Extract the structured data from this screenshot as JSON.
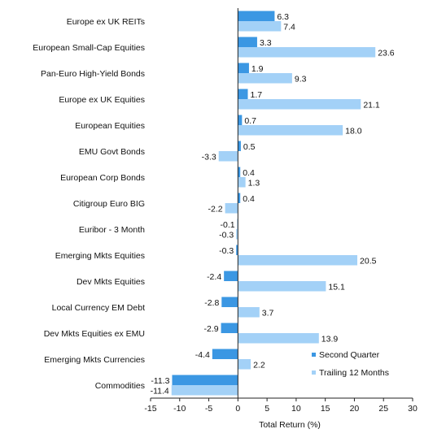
{
  "chart_data": {
    "type": "bar",
    "orientation": "horizontal",
    "categories": [
      "Europe ex UK REITs",
      "European Small-Cap Equities",
      "Pan-Euro High-Yield Bonds",
      "Europe ex UK Equities",
      "European Equities",
      "EMU Govt Bonds",
      "European Corp Bonds",
      "Citigroup Euro BIG",
      "Euribor - 3 Month",
      "Emerging Mkts Equities",
      "Dev Mkts Equities",
      "Local Currency EM Debt",
      "Dev Mkts Equities ex EMU",
      "Emerging Mkts Currencies",
      "Commodities"
    ],
    "series": [
      {
        "name": "Second Quarter",
        "color": "#3b97e3",
        "values": [
          6.3,
          3.3,
          1.9,
          1.7,
          0.7,
          0.5,
          0.4,
          0.4,
          -0.1,
          -0.3,
          -2.4,
          -2.8,
          -2.9,
          -4.4,
          -11.3
        ],
        "labels": [
          "6.3",
          "3.3",
          "1.9",
          "1.7",
          "0.7",
          "0.5",
          "0.4",
          "0.4",
          "-0.1",
          "-0.3",
          "-2.4",
          "-2.8",
          "-2.9",
          "-4.4",
          "-11.3"
        ]
      },
      {
        "name": "Trailing 12 Months",
        "color": "#a3d1f7",
        "values": [
          7.4,
          23.6,
          9.3,
          21.1,
          18.0,
          -3.3,
          1.3,
          -2.2,
          -0.3,
          20.5,
          15.1,
          3.7,
          13.9,
          2.2,
          -11.4
        ],
        "labels": [
          "7.4",
          "23.6",
          "9.3",
          "21.1",
          "18.0",
          "-3.3",
          "1.3",
          "-2.2",
          "-0.3",
          "20.5",
          "15.1",
          "3.7",
          "13.9",
          "2.2",
          "-11.4"
        ]
      }
    ],
    "xlabel": "Total Return (%)",
    "xlim": [
      -15,
      30
    ],
    "xticks": [
      -15,
      -10,
      -5,
      0,
      5,
      10,
      15,
      20,
      25,
      30
    ],
    "xtick_labels": [
      "-15",
      "-10",
      "-5",
      "0",
      "5",
      "10",
      "15",
      "20",
      "25",
      "30"
    ],
    "legend_position": "bottom-right",
    "grid": false
  }
}
